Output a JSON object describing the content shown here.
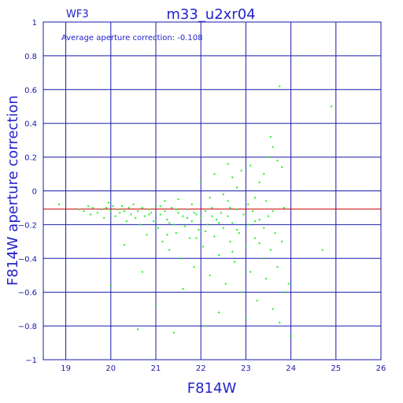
{
  "chart_data": {
    "type": "scatter",
    "title": "m33_u2xr04",
    "chip_label": "WF3",
    "annotation": "Average aperture correction: -0.108",
    "xlabel": "F814W",
    "ylabel": "F814W aperture correction",
    "xlim": [
      18.5,
      26
    ],
    "ylim": [
      -1,
      1
    ],
    "x_ticks": [
      19,
      20,
      21,
      22,
      23,
      24,
      25,
      26
    ],
    "y_ticks": [
      -1,
      -0.8,
      -0.6,
      -0.4,
      -0.2,
      0,
      0.2,
      0.4,
      0.6,
      0.8,
      1
    ],
    "x_tick_labels": [
      "19",
      "20",
      "21",
      "22",
      "23",
      "24",
      "25",
      "26"
    ],
    "y_tick_labels": [
      "−1",
      "−0.8",
      "−0.6",
      "−0.4",
      "−0.2",
      "0",
      "0.2",
      "0.4",
      "0.6",
      "0.8",
      "1"
    ],
    "grid": true,
    "reference_line": {
      "y": -0.108,
      "color": "#cc0000"
    },
    "point_color": "#22ee22",
    "grid_color": "#1a1aaa",
    "series": [
      {
        "values": [
          [
            18.85,
            -0.08
          ],
          [
            19.3,
            -0.11
          ],
          [
            19.4,
            -0.12
          ],
          [
            19.5,
            -0.09
          ],
          [
            19.55,
            -0.14
          ],
          [
            19.6,
            -0.1
          ],
          [
            19.7,
            -0.13
          ],
          [
            19.8,
            -0.11
          ],
          [
            19.85,
            -0.16
          ],
          [
            19.9,
            -0.1
          ],
          [
            19.95,
            -0.07
          ],
          [
            20.0,
            -0.12
          ],
          [
            20.05,
            -0.09
          ],
          [
            20.1,
            -0.15
          ],
          [
            20.15,
            -0.11
          ],
          [
            20.2,
            -0.13
          ],
          [
            20.25,
            -0.09
          ],
          [
            20.3,
            -0.12
          ],
          [
            20.35,
            -0.18
          ],
          [
            20.4,
            -0.1
          ],
          [
            20.45,
            -0.14
          ],
          [
            20.5,
            -0.08
          ],
          [
            20.55,
            -0.16
          ],
          [
            20.6,
            -0.12
          ],
          [
            20.65,
            -0.2
          ],
          [
            20.7,
            -0.1
          ],
          [
            20.75,
            -0.15
          ],
          [
            20.8,
            -0.26
          ],
          [
            20.85,
            -0.11
          ],
          [
            20.9,
            -0.13
          ],
          [
            20.95,
            -0.18
          ],
          [
            21.0,
            -0.09
          ],
          [
            21.05,
            -0.22
          ],
          [
            21.1,
            -0.14
          ],
          [
            21.15,
            -0.3
          ],
          [
            21.2,
            -0.12
          ],
          [
            21.25,
            -0.17
          ],
          [
            21.3,
            -0.35
          ],
          [
            21.35,
            -0.1
          ],
          [
            21.4,
            -0.2
          ],
          [
            21.45,
            -0.25
          ],
          [
            21.5,
            -0.13
          ],
          [
            21.55,
            -0.4
          ],
          [
            21.6,
            -0.15
          ],
          [
            21.65,
            -0.21
          ],
          [
            21.7,
            -0.11
          ],
          [
            21.75,
            -0.28
          ],
          [
            21.8,
            -0.18
          ],
          [
            21.85,
            -0.45
          ],
          [
            21.9,
            -0.14
          ],
          [
            21.95,
            -0.23
          ],
          [
            22.0,
            -0.16
          ],
          [
            22.05,
            -0.33
          ],
          [
            22.1,
            -0.12
          ],
          [
            22.15,
            -0.2
          ],
          [
            22.2,
            -0.5
          ],
          [
            22.25,
            -0.1
          ],
          [
            22.3,
            -0.27
          ],
          [
            22.35,
            -0.17
          ],
          [
            22.4,
            -0.38
          ],
          [
            22.45,
            -0.13
          ],
          [
            22.5,
            -0.22
          ],
          [
            22.55,
            -0.55
          ],
          [
            22.6,
            -0.15
          ],
          [
            22.65,
            -0.3
          ],
          [
            22.7,
            -0.19
          ],
          [
            22.75,
            -0.42
          ],
          [
            22.8,
            -0.11
          ],
          [
            22.85,
            -0.25
          ],
          [
            22.9,
            -0.6
          ],
          [
            22.95,
            -0.14
          ],
          [
            23.0,
            -0.33
          ],
          [
            23.05,
            -0.2
          ],
          [
            23.1,
            -0.48
          ],
          [
            23.15,
            -0.12
          ],
          [
            23.2,
            -0.28
          ],
          [
            23.25,
            -0.65
          ],
          [
            23.3,
            -0.17
          ],
          [
            23.35,
            -0.4
          ],
          [
            23.4,
            -0.22
          ],
          [
            23.45,
            -0.52
          ],
          [
            23.5,
            -0.15
          ],
          [
            23.55,
            -0.35
          ],
          [
            23.6,
            -0.7
          ],
          [
            23.65,
            -0.25
          ],
          [
            23.7,
            -0.45
          ],
          [
            23.75,
            -0.78
          ],
          [
            23.8,
            -0.3
          ],
          [
            23.85,
            -0.6
          ],
          [
            23.95,
            -0.55
          ],
          [
            22.0,
            0.05
          ],
          [
            22.3,
            0.1
          ],
          [
            22.5,
            -0.02
          ],
          [
            22.7,
            0.08
          ],
          [
            22.9,
            0.12
          ],
          [
            23.1,
            0.15
          ],
          [
            23.3,
            0.05
          ],
          [
            23.5,
            0.2
          ],
          [
            23.6,
            0.26
          ],
          [
            23.7,
            0.18
          ],
          [
            23.55,
            0.32
          ],
          [
            23.8,
            0.14
          ],
          [
            22.6,
            0.16
          ],
          [
            23.2,
            -0.04
          ],
          [
            22.8,
            0.02
          ],
          [
            23.4,
            0.1
          ],
          [
            23.75,
            0.62
          ],
          [
            24.9,
            0.5
          ],
          [
            24.7,
            -0.35
          ],
          [
            24.0,
            -0.86
          ],
          [
            20.6,
            -0.82
          ],
          [
            21.4,
            -0.84
          ],
          [
            22.1,
            -0.8
          ],
          [
            20.0,
            -0.56
          ],
          [
            21.0,
            -0.68
          ],
          [
            20.3,
            -0.32
          ],
          [
            20.7,
            -0.48
          ],
          [
            21.6,
            -0.58
          ],
          [
            22.4,
            -0.72
          ],
          [
            23.0,
            -0.75
          ],
          [
            21.2,
            -0.06
          ],
          [
            21.5,
            -0.05
          ],
          [
            21.8,
            -0.08
          ],
          [
            22.2,
            -0.04
          ],
          [
            22.6,
            -0.06
          ],
          [
            21.9,
            -0.28
          ],
          [
            22.1,
            -0.24
          ],
          [
            22.7,
            -0.36
          ],
          [
            23.3,
            -0.31
          ],
          [
            21.3,
            -0.19
          ],
          [
            21.7,
            -0.16
          ],
          [
            22.4,
            -0.19
          ],
          [
            22.8,
            -0.23
          ],
          [
            23.2,
            -0.18
          ],
          [
            23.6,
            -0.12
          ],
          [
            21.1,
            -0.09
          ],
          [
            21.45,
            -0.11
          ],
          [
            21.85,
            -0.13
          ],
          [
            22.25,
            -0.15
          ],
          [
            22.65,
            -0.1
          ],
          [
            23.05,
            -0.08
          ],
          [
            23.45,
            -0.06
          ],
          [
            23.85,
            -0.1
          ],
          [
            20.85,
            -0.14
          ],
          [
            21.25,
            -0.26
          ]
        ]
      }
    ]
  }
}
